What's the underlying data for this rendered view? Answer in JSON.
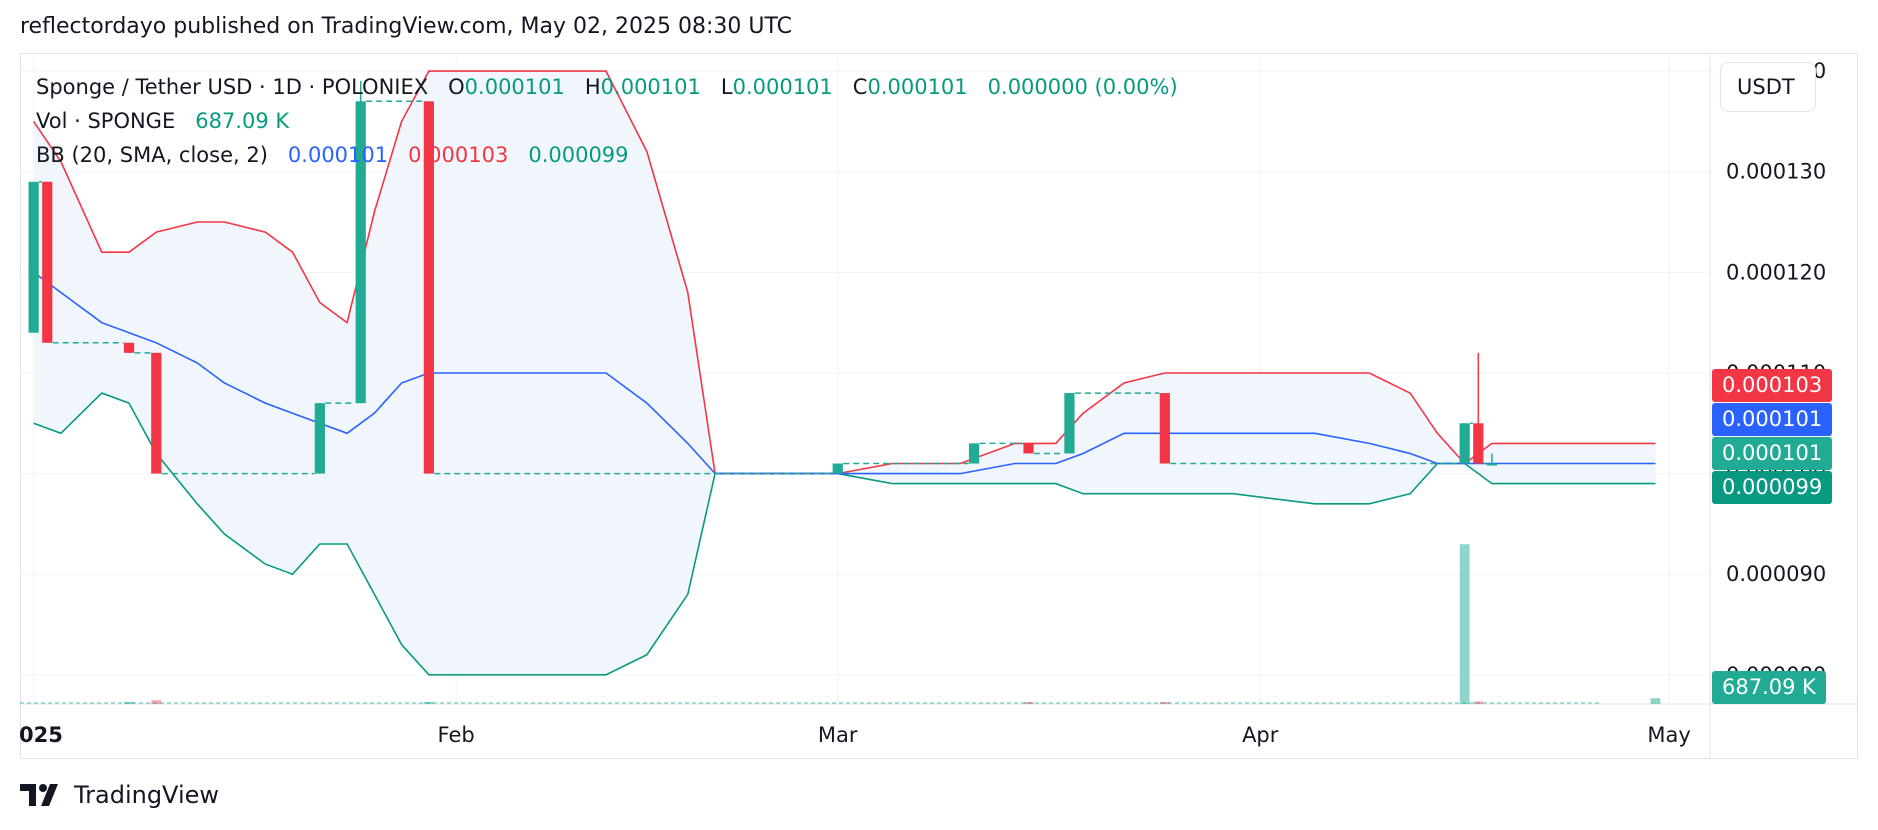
{
  "header": {
    "published": "reflectordayo published on TradingView.com, May 02, 2025 08:30 UTC"
  },
  "legend": {
    "symbol": "Sponge / Tether USD · 1D · POLONIEX",
    "o_label": "O",
    "o": "0.000101",
    "h_label": "H",
    "h": "0.000101",
    "l_label": "L",
    "l": "0.000101",
    "c_label": "C",
    "c": "0.000101",
    "change": "0.000000 (0.00%)",
    "vol_label": "Vol · SPONGE",
    "vol": "687.09 K",
    "bb_label": "BB (20, SMA, close, 2)",
    "bb_basis": "0.000101",
    "bb_upper": "0.000103",
    "bb_lower": "0.000099"
  },
  "currency": "USDT",
  "price_tags": [
    {
      "text": "0.000103",
      "color": "#f23645"
    },
    {
      "text": "0.000101",
      "color": "#2962ff"
    },
    {
      "text": "0.000101",
      "color": "#22ab94"
    },
    {
      "text": "0.000099",
      "color": "#089981"
    }
  ],
  "volume_tag": {
    "text": "687.09 K",
    "color": "#22ab94"
  },
  "footer": {
    "brand": "TradingView"
  },
  "chart_data": {
    "type": "candlestick",
    "title": "Sponge / Tether USD · 1D · POLONIEX",
    "y_ticks": [
      "0.000140",
      "0.000130",
      "0.000120",
      "0.000110",
      "0.000100",
      "0.000090",
      "0.000080"
    ],
    "ylim": [
      7.71e-05,
      0.0001417
    ],
    "x_ticks": [
      {
        "label": "2025",
        "date": "2025-01-01"
      },
      {
        "label": "Feb",
        "date": "2025-02-01"
      },
      {
        "label": "Mar",
        "date": "2025-03-01"
      },
      {
        "label": "Apr",
        "date": "2025-04-01"
      },
      {
        "label": "May",
        "date": "2025-05-01"
      }
    ],
    "xlim": [
      "2024-12-31",
      "2025-05-04"
    ],
    "colors": {
      "up": "#22ab94",
      "down": "#f23645",
      "bb_basis": "#2962ff",
      "bb_upper": "#f23645",
      "bb_lower": "#089981",
      "bb_fill": "#eef4fb"
    },
    "candles": [
      {
        "date": "2025-01-01",
        "open": 0.000114,
        "high": 0.000129,
        "low": 0.000114,
        "close": 0.000129
      },
      {
        "date": "2025-01-02",
        "open": 0.000129,
        "high": 0.000129,
        "low": 0.000113,
        "close": 0.000113
      },
      {
        "date": "2025-01-08",
        "open": 0.000113,
        "high": 0.000113,
        "low": 0.000112,
        "close": 0.000112
      },
      {
        "date": "2025-01-10",
        "open": 0.000112,
        "high": 0.000112,
        "low": 0.0001,
        "close": 0.0001
      },
      {
        "date": "2025-01-22",
        "open": 0.0001,
        "high": 0.000107,
        "low": 0.0001,
        "close": 0.000107
      },
      {
        "date": "2025-01-25",
        "open": 0.000107,
        "high": 0.000139,
        "low": 0.000107,
        "close": 0.000137
      },
      {
        "date": "2025-01-30",
        "open": 0.000137,
        "high": 0.000137,
        "low": 0.0001,
        "close": 0.0001
      },
      {
        "date": "2025-03-01",
        "open": 0.0001,
        "high": 0.000101,
        "low": 0.0001,
        "close": 0.000101
      },
      {
        "date": "2025-03-11",
        "open": 0.000101,
        "high": 0.000103,
        "low": 0.000101,
        "close": 0.000103
      },
      {
        "date": "2025-03-15",
        "open": 0.000103,
        "high": 0.000103,
        "low": 0.000102,
        "close": 0.000102
      },
      {
        "date": "2025-03-18",
        "open": 0.000102,
        "high": 0.000108,
        "low": 0.000102,
        "close": 0.000108
      },
      {
        "date": "2025-03-25",
        "open": 0.000108,
        "high": 0.000108,
        "low": 0.000101,
        "close": 0.000101
      },
      {
        "date": "2025-04-16",
        "open": 0.000101,
        "high": 0.000105,
        "low": 0.000101,
        "close": 0.000105
      },
      {
        "date": "2025-04-17",
        "open": 0.000105,
        "high": 0.000112,
        "low": 0.000101,
        "close": 0.000101
      },
      {
        "date": "2025-04-18",
        "open": 0.000101,
        "high": 0.000102,
        "low": 0.000101,
        "close": 0.000101
      }
    ],
    "bollinger": {
      "dates": [
        "2025-01-01",
        "2025-01-03",
        "2025-01-06",
        "2025-01-08",
        "2025-01-10",
        "2025-01-13",
        "2025-01-15",
        "2025-01-18",
        "2025-01-20",
        "2025-01-22",
        "2025-01-24",
        "2025-01-26",
        "2025-01-28",
        "2025-01-30",
        "2025-02-03",
        "2025-02-08",
        "2025-02-12",
        "2025-02-15",
        "2025-02-18",
        "2025-02-20",
        "2025-03-01",
        "2025-03-05",
        "2025-03-10",
        "2025-03-14",
        "2025-03-17",
        "2025-03-19",
        "2025-03-22",
        "2025-03-25",
        "2025-03-30",
        "2025-04-05",
        "2025-04-09",
        "2025-04-12",
        "2025-04-14",
        "2025-04-16",
        "2025-04-18",
        "2025-04-25",
        "2025-04-30"
      ],
      "upper": [
        0.000135,
        0.000131,
        0.000122,
        0.000122,
        0.000124,
        0.000125,
        0.000125,
        0.000124,
        0.000122,
        0.000117,
        0.000115,
        0.000126,
        0.000135,
        0.00014,
        0.00014,
        0.00014,
        0.00014,
        0.000132,
        0.000118,
        0.0001,
        0.0001,
        0.000101,
        0.000101,
        0.000103,
        0.000103,
        0.000106,
        0.000109,
        0.00011,
        0.00011,
        0.00011,
        0.00011,
        0.000108,
        0.000104,
        0.000101,
        0.000103,
        0.000103,
        0.000103
      ],
      "basis": [
        0.00012,
        0.000118,
        0.000115,
        0.000114,
        0.000113,
        0.000111,
        0.000109,
        0.000107,
        0.000106,
        0.000105,
        0.000104,
        0.000106,
        0.000109,
        0.00011,
        0.00011,
        0.00011,
        0.00011,
        0.000107,
        0.000103,
        0.0001,
        0.0001,
        0.0001,
        0.0001,
        0.000101,
        0.000101,
        0.000102,
        0.000104,
        0.000104,
        0.000104,
        0.000104,
        0.000103,
        0.000102,
        0.000101,
        0.000101,
        0.000101,
        0.000101,
        0.000101
      ],
      "lower": [
        0.000105,
        0.000104,
        0.000108,
        0.000107,
        0.000102,
        9.7e-05,
        9.4e-05,
        9.1e-05,
        9e-05,
        9.3e-05,
        9.3e-05,
        8.8e-05,
        8.3e-05,
        8e-05,
        8e-05,
        8e-05,
        8e-05,
        8.2e-05,
        8.8e-05,
        0.0001,
        0.0001,
        9.9e-05,
        9.9e-05,
        9.9e-05,
        9.9e-05,
        9.8e-05,
        9.8e-05,
        9.8e-05,
        9.8e-05,
        9.7e-05,
        9.7e-05,
        9.8e-05,
        0.000101,
        0.000101,
        9.9e-05,
        9.9e-05,
        9.9e-05
      ]
    },
    "volume": {
      "max": 19.5,
      "unit": "M",
      "bars": [
        {
          "date": "2025-01-08",
          "value": 0.25,
          "dir": "up"
        },
        {
          "date": "2025-01-10",
          "value": 0.45,
          "dir": "down"
        },
        {
          "date": "2025-01-30",
          "value": 0.25,
          "dir": "up"
        },
        {
          "date": "2025-03-15",
          "value": 0.2,
          "dir": "down"
        },
        {
          "date": "2025-03-25",
          "value": 0.1,
          "dir": "down"
        },
        {
          "date": "2025-04-16",
          "value": 19.0,
          "dir": "up"
        },
        {
          "date": "2025-04-17",
          "value": 0.3,
          "dir": "down"
        },
        {
          "date": "2025-04-30",
          "value": 0.69,
          "dir": "up"
        }
      ]
    }
  }
}
